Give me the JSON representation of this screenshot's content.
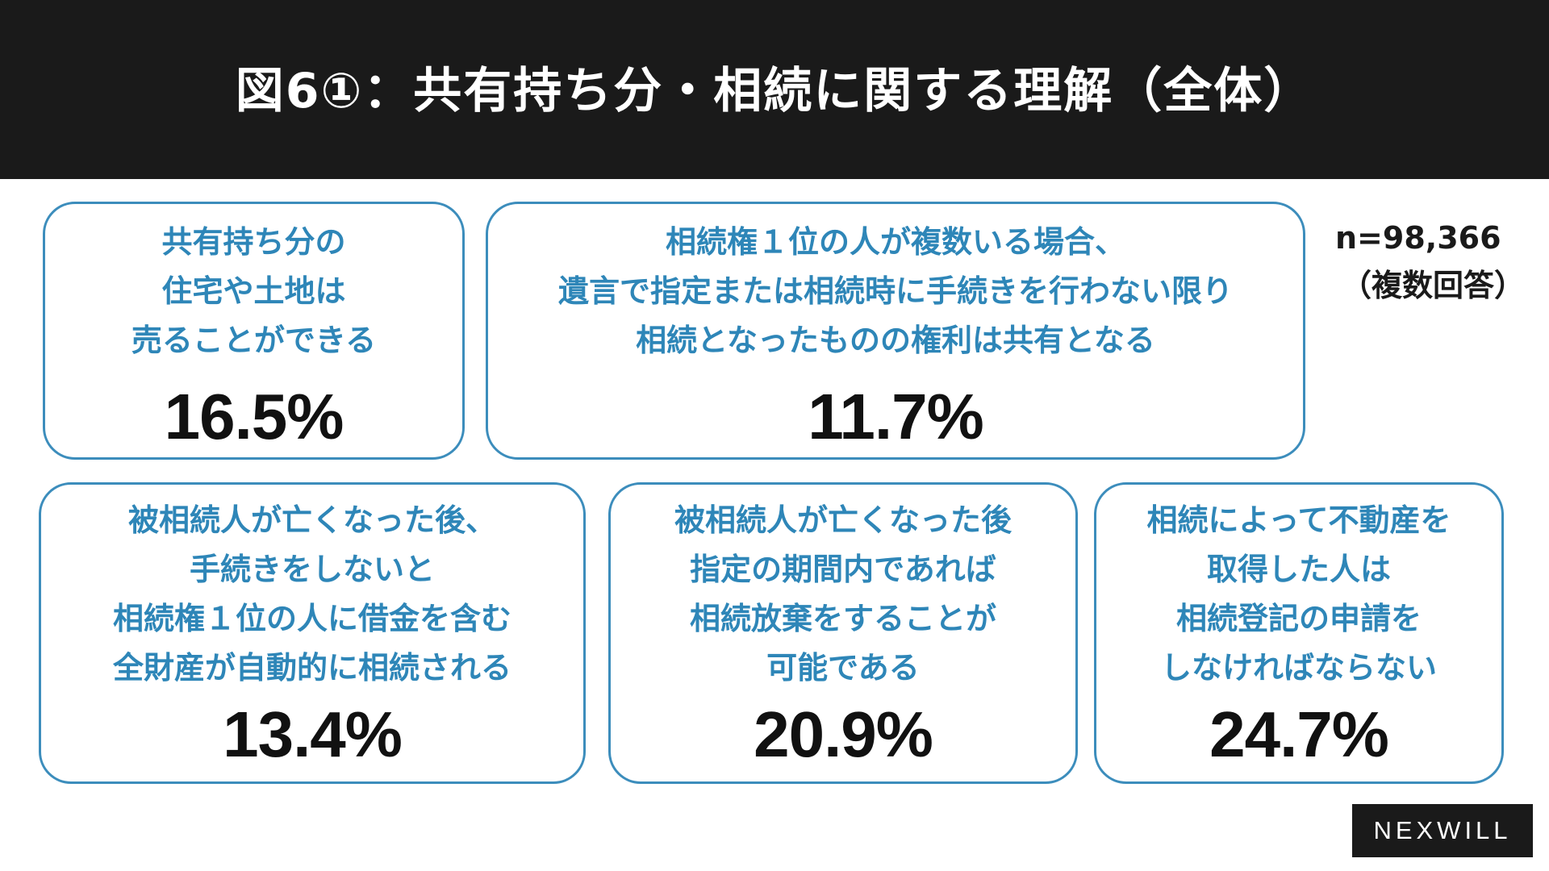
{
  "title": "図6①：共有持ち分・相続に関する理解（全体）",
  "note": {
    "sample": "n=98,366",
    "multiple": "（複数回答）"
  },
  "logo": "NEXWILL",
  "colors": {
    "header_bg": "#1a1a1a",
    "card_border": "#3c8dbc",
    "statement_text": "#2e86b8",
    "value_text": "#111111"
  },
  "chart_data": {
    "type": "table",
    "items": [
      {
        "lines": [
          "共有持ち分の",
          "住宅や土地は",
          "売ることができる"
        ],
        "value_label": "16.5%",
        "value": 16.5
      },
      {
        "lines": [
          "相続権１位の人が複数いる場合、",
          "遺言で指定または相続時に手続きを行わない限り",
          "相続となったものの権利は共有となる"
        ],
        "value_label": "11.7%",
        "value": 11.7
      },
      {
        "lines": [
          "被相続人が亡くなった後、",
          "手続きをしないと",
          "相続権１位の人に借金を含む",
          "全財産が自動的に相続される"
        ],
        "value_label": "13.4%",
        "value": 13.4
      },
      {
        "lines": [
          "被相続人が亡くなった後",
          "指定の期間内であれば",
          "相続放棄をすることが",
          "可能である"
        ],
        "value_label": "20.9%",
        "value": 20.9
      },
      {
        "lines": [
          "相続によって不動産を",
          "取得した人は",
          "相続登記の申請を",
          "しなければならない"
        ],
        "value_label": "24.7%",
        "value": 24.7
      }
    ]
  }
}
